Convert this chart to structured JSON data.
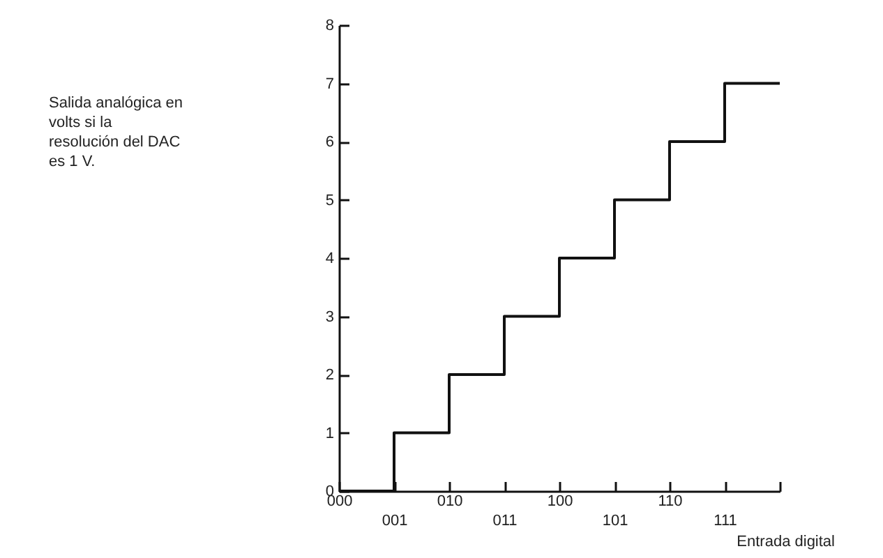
{
  "chart_data": {
    "type": "step",
    "annotations": [
      "Salida analógica en volts si la resolución del DAC es 1 V."
    ],
    "xlabel": "Entrada digital",
    "categories": [
      "000",
      "001",
      "010",
      "011",
      "100",
      "101",
      "110",
      "111",
      null
    ],
    "values": [
      0,
      1,
      2,
      3,
      4,
      5,
      6,
      7,
      7
    ],
    "color": "#111111",
    "ylim": [
      0,
      8
    ],
    "yticks": [
      0,
      1,
      2,
      3,
      4,
      5,
      6,
      7,
      8
    ],
    "grid": false
  }
}
